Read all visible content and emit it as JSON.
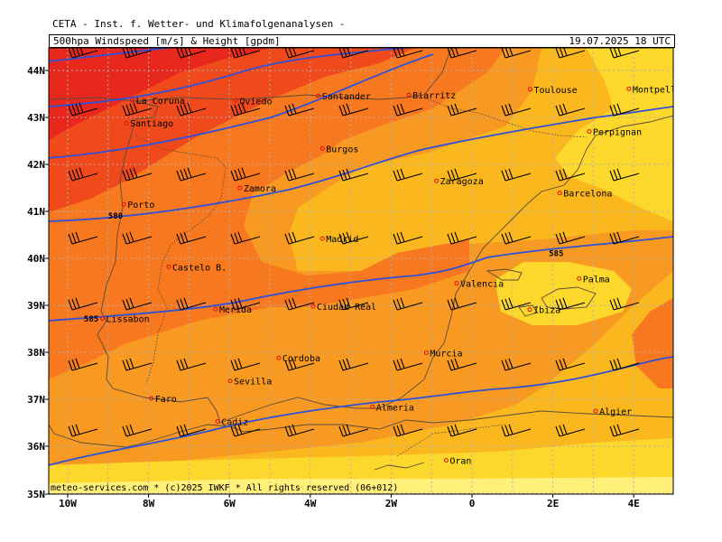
{
  "title": "CETA - Inst. f. Wetter- und Klimafolgenanalysen -",
  "product": "500hpa Windspeed [m/s] & Height [gpdm]",
  "valid": "19.07.2025 18 UTC",
  "footer": "meteo-services.com * (c)2025 IWKF * All rights reserved (06+012)",
  "colors": {
    "speed_30": "#e8281c",
    "speed_25": "#f04a1c",
    "speed_20": "#f7781e",
    "speed_15": "#f89a22",
    "speed_10": "#fab81e",
    "speed_05": "#fdd82c",
    "speed_00": "#fff07a",
    "contour": "#3050d8",
    "coast": "#5a4a3a",
    "grid": "#b0b0b0"
  },
  "lon_labels": [
    "10W",
    "8W",
    "6W",
    "4W",
    "2W",
    "0",
    "2E",
    "4E"
  ],
  "lat_labels": [
    "44N",
    "43N",
    "42N",
    "41N",
    "40N",
    "39N",
    "38N",
    "37N",
    "36N",
    "35N"
  ],
  "contour_labels": [
    {
      "text": "580",
      "lon": -9.0,
      "lat": 40.85
    },
    {
      "text": "585",
      "lon": -9.6,
      "lat": 38.65
    },
    {
      "text": "585",
      "lon": 1.9,
      "lat": 40.05
    }
  ],
  "cities": [
    {
      "name": "La Coruna",
      "lon": -8.4,
      "lat": 43.37
    },
    {
      "name": "Santiago",
      "lon": -8.55,
      "lat": 42.88
    },
    {
      "name": "Oviedo",
      "lon": -5.84,
      "lat": 43.36
    },
    {
      "name": "Santander",
      "lon": -3.8,
      "lat": 43.46
    },
    {
      "name": "Biarritz",
      "lon": -1.56,
      "lat": 43.48
    },
    {
      "name": "Toulouse",
      "lon": 1.44,
      "lat": 43.6
    },
    {
      "name": "Montpellier",
      "lon": 3.88,
      "lat": 43.61
    },
    {
      "name": "Perpignan",
      "lon": 2.9,
      "lat": 42.7
    },
    {
      "name": "Burgos",
      "lon": -3.7,
      "lat": 42.34
    },
    {
      "name": "Zamora",
      "lon": -5.74,
      "lat": 41.5
    },
    {
      "name": "Zaragoza",
      "lon": -0.88,
      "lat": 41.65
    },
    {
      "name": "Barcelona",
      "lon": 2.17,
      "lat": 41.39
    },
    {
      "name": "Porto",
      "lon": -8.61,
      "lat": 41.15
    },
    {
      "name": "Madrid",
      "lon": -3.7,
      "lat": 40.42
    },
    {
      "name": "Castelo B.",
      "lon": -7.5,
      "lat": 39.82
    },
    {
      "name": "Palma",
      "lon": 2.65,
      "lat": 39.57
    },
    {
      "name": "Valencia",
      "lon": -0.38,
      "lat": 39.47
    },
    {
      "name": "Ibiza",
      "lon": 1.43,
      "lat": 38.91
    },
    {
      "name": "Lissabon",
      "lon": -9.14,
      "lat": 38.72
    },
    {
      "name": "Merida",
      "lon": -6.34,
      "lat": 38.92
    },
    {
      "name": "Ciudad Real",
      "lon": -3.93,
      "lat": 38.98
    },
    {
      "name": "Murcia",
      "lon": -1.13,
      "lat": 37.99
    },
    {
      "name": "Cordoba",
      "lon": -4.78,
      "lat": 37.88
    },
    {
      "name": "Faro",
      "lon": -7.93,
      "lat": 37.02
    },
    {
      "name": "Sevilla",
      "lon": -5.98,
      "lat": 37.39
    },
    {
      "name": "Almeria",
      "lon": -2.46,
      "lat": 36.84
    },
    {
      "name": "Algier",
      "lon": 3.06,
      "lat": 36.75
    },
    {
      "name": "Cadiz",
      "lon": -6.29,
      "lat": 36.53
    },
    {
      "name": "Oran",
      "lon": -0.64,
      "lat": 35.7
    }
  ]
}
